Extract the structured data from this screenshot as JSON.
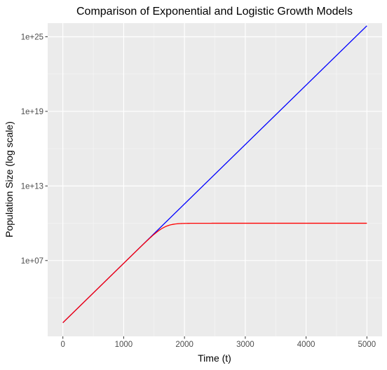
{
  "chart_data": {
    "type": "line",
    "title": "Comparison of Exponential and Logistic Growth Models",
    "xlabel": "Time (t)",
    "ylabel": "Population Size (log scale)",
    "xlim": [
      -250,
      5250
    ],
    "ylim_log10": [
      0.9,
      26.1
    ],
    "y_scale": "log10",
    "grid": true,
    "legend": "none",
    "x_ticks": [
      {
        "value": 0,
        "label": "0"
      },
      {
        "value": 1000,
        "label": "1000"
      },
      {
        "value": 2000,
        "label": "2000"
      },
      {
        "value": 3000,
        "label": "3000"
      },
      {
        "value": 4000,
        "label": "4000"
      },
      {
        "value": 5000,
        "label": "5000"
      }
    ],
    "y_ticks": [
      {
        "value_log10": 7,
        "label": "1e+07"
      },
      {
        "value_log10": 13,
        "label": "1e+13"
      },
      {
        "value_log10": 19,
        "label": "1e+19"
      },
      {
        "value_log10": 25,
        "label": "1e+25"
      }
    ],
    "series": [
      {
        "color": "#0000ff",
        "model": "exponential",
        "initial_population": 100,
        "rate": 0.011,
        "t_max": 5000
      },
      {
        "color": "#ff0000",
        "model": "logistic",
        "initial_population": 100,
        "rate": 0.011,
        "carrying_capacity": 10000000000.0,
        "t_max": 5000
      }
    ]
  }
}
